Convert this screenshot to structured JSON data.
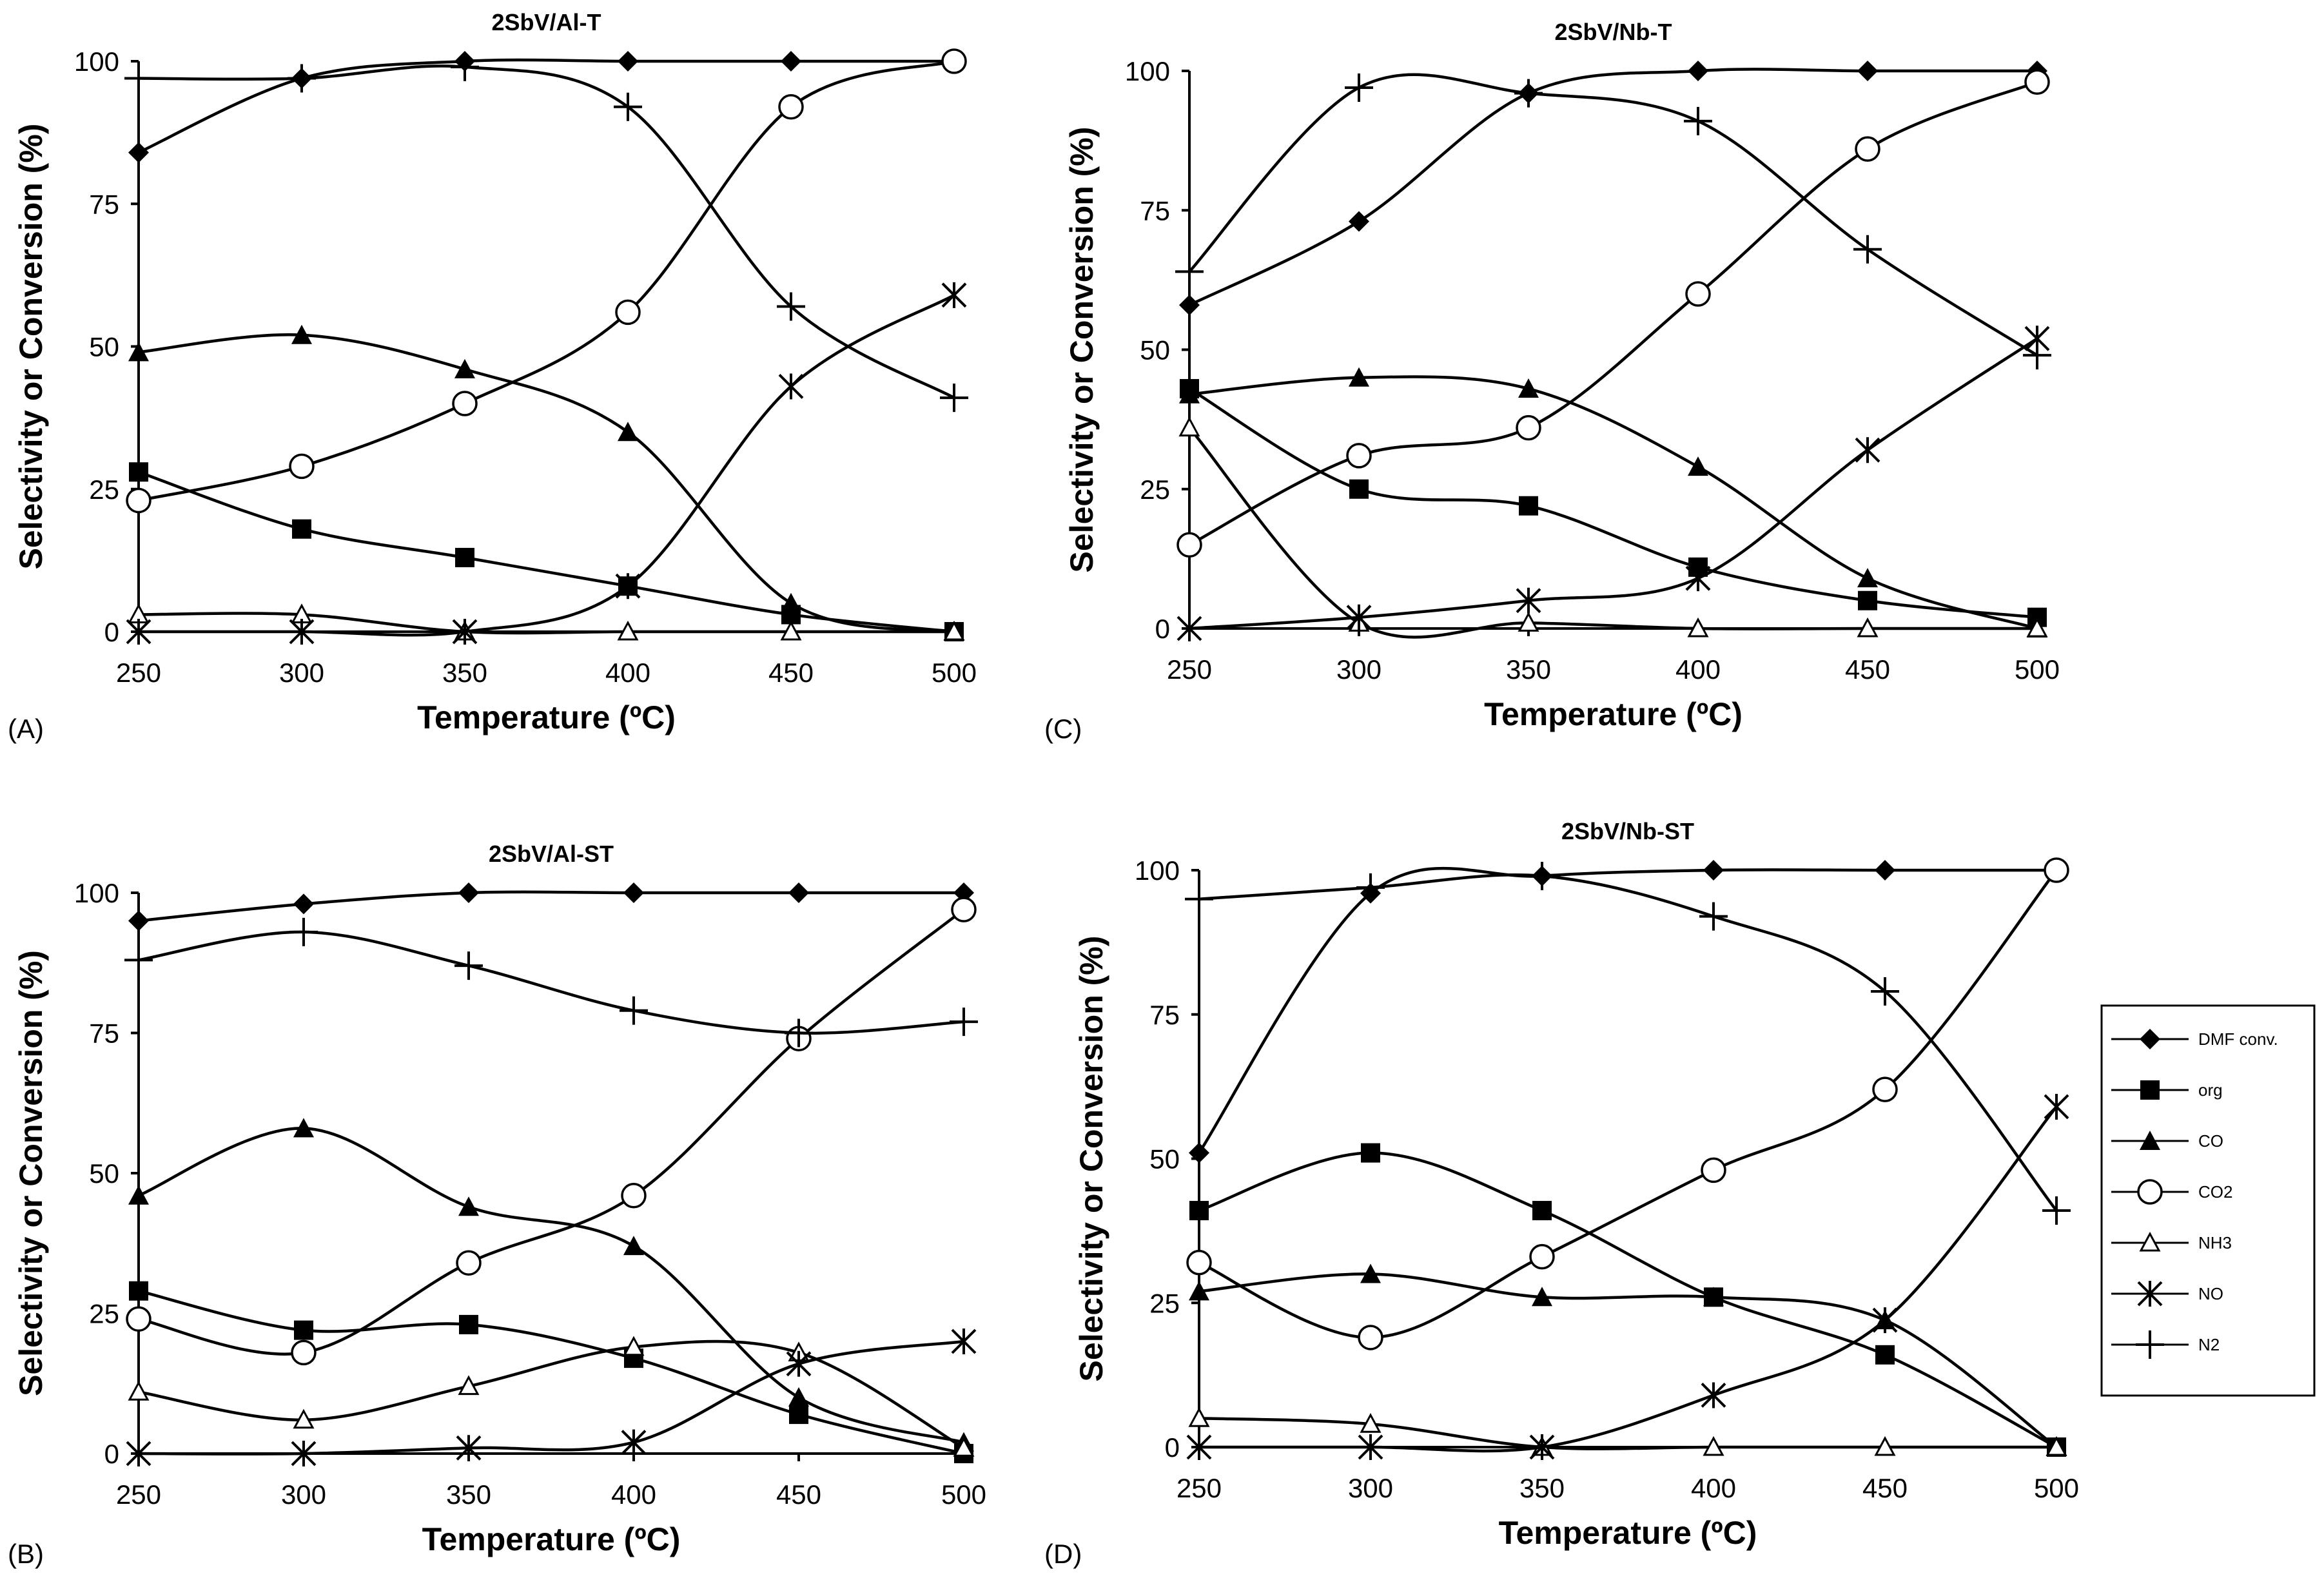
{
  "chart_data": [
    {
      "type": "line",
      "panel": "(A)",
      "title": "2SbV/Al-T",
      "xlabel": "Temperature (ºC)",
      "ylabel": "Selectivity or Conversion (%)",
      "x": [
        250,
        300,
        350,
        400,
        450,
        500
      ],
      "xticks": [
        "250",
        "300",
        "350",
        "400",
        "450",
        "500"
      ],
      "yticks": [
        "0",
        "25",
        "50",
        "75",
        "100"
      ],
      "ylim": [
        0,
        100
      ],
      "series": [
        {
          "name": "DMF conv.",
          "marker": "diamond",
          "values": [
            84,
            97,
            100,
            100,
            100,
            100
          ]
        },
        {
          "name": "org",
          "marker": "square",
          "values": [
            28,
            18,
            13,
            8,
            3,
            0
          ]
        },
        {
          "name": "CO",
          "marker": "triangle",
          "values": [
            49,
            52,
            46,
            35,
            5,
            0
          ]
        },
        {
          "name": "CO2",
          "marker": "circle",
          "values": [
            23,
            29,
            40,
            56,
            92,
            100
          ]
        },
        {
          "name": "NH3",
          "marker": "open-triangle",
          "values": [
            3,
            3,
            0,
            0,
            0,
            0
          ]
        },
        {
          "name": "NO",
          "marker": "star",
          "values": [
            0,
            0,
            0,
            8,
            43,
            59
          ]
        },
        {
          "name": "N2",
          "marker": "plus",
          "values": [
            97,
            97,
            99,
            92,
            57,
            41
          ]
        }
      ]
    },
    {
      "type": "line",
      "panel": "(B)",
      "title": "2SbV/Al-ST",
      "xlabel": "Temperature (ºC)",
      "ylabel": "Selectivity or Conversion (%)",
      "x": [
        250,
        300,
        350,
        400,
        450,
        500
      ],
      "xticks": [
        "250",
        "300",
        "350",
        "400",
        "450",
        "500"
      ],
      "yticks": [
        "0",
        "25",
        "50",
        "75",
        "100"
      ],
      "ylim": [
        0,
        100
      ],
      "series": [
        {
          "name": "DMF conv.",
          "marker": "diamond",
          "values": [
            95,
            98,
            100,
            100,
            100,
            100
          ]
        },
        {
          "name": "org",
          "marker": "square",
          "values": [
            29,
            22,
            23,
            17,
            7,
            0
          ]
        },
        {
          "name": "CO",
          "marker": "triangle",
          "values": [
            46,
            58,
            44,
            37,
            10,
            2
          ]
        },
        {
          "name": "CO2",
          "marker": "circle",
          "values": [
            24,
            18,
            34,
            46,
            74,
            97
          ]
        },
        {
          "name": "NH3",
          "marker": "open-triangle",
          "values": [
            11,
            6,
            12,
            19,
            18,
            1
          ]
        },
        {
          "name": "NO",
          "marker": "star",
          "values": [
            0,
            0,
            1,
            2,
            16,
            20
          ]
        },
        {
          "name": "N2",
          "marker": "plus",
          "values": [
            88,
            93,
            87,
            79,
            75,
            77
          ]
        }
      ]
    },
    {
      "type": "line",
      "panel": "(C)",
      "title": "2SbV/Nb-T",
      "xlabel": "Temperature (ºC)",
      "ylabel": "Selectivity or Conversion (%)",
      "x": [
        250,
        300,
        350,
        400,
        450,
        500
      ],
      "xticks": [
        "250",
        "300",
        "350",
        "400",
        "450",
        "500"
      ],
      "yticks": [
        "0",
        "25",
        "50",
        "75",
        "100"
      ],
      "ylim": [
        0,
        100
      ],
      "series": [
        {
          "name": "DMF conv.",
          "marker": "diamond",
          "values": [
            58,
            73,
            96,
            100,
            100,
            100
          ]
        },
        {
          "name": "org",
          "marker": "square",
          "values": [
            43,
            25,
            22,
            11,
            5,
            2
          ]
        },
        {
          "name": "CO",
          "marker": "triangle",
          "values": [
            42,
            45,
            43,
            29,
            9,
            0
          ]
        },
        {
          "name": "CO2",
          "marker": "circle",
          "values": [
            15,
            31,
            36,
            60,
            86,
            98
          ]
        },
        {
          "name": "NH3",
          "marker": "open-triangle",
          "values": [
            36,
            1,
            1,
            0,
            0,
            0
          ]
        },
        {
          "name": "NO",
          "marker": "star",
          "values": [
            0,
            2,
            5,
            9,
            32,
            52
          ]
        },
        {
          "name": "N2",
          "marker": "plus",
          "values": [
            64,
            97,
            96,
            91,
            68,
            49
          ]
        }
      ]
    },
    {
      "type": "line",
      "panel": "(D)",
      "title": "2SbV/Nb-ST",
      "xlabel": "Temperature (ºC)",
      "ylabel": "Selectivity or Conversion (%)",
      "x": [
        250,
        300,
        350,
        400,
        450,
        500
      ],
      "xticks": [
        "250",
        "300",
        "350",
        "400",
        "450",
        "500"
      ],
      "yticks": [
        "0",
        "25",
        "50",
        "75",
        "100"
      ],
      "ylim": [
        0,
        100
      ],
      "series": [
        {
          "name": "DMF conv.",
          "marker": "diamond",
          "values": [
            51,
            96,
            99,
            100,
            100,
            100
          ]
        },
        {
          "name": "org",
          "marker": "square",
          "values": [
            41,
            51,
            41,
            26,
            16,
            0
          ]
        },
        {
          "name": "CO",
          "marker": "triangle",
          "values": [
            27,
            30,
            26,
            26,
            22,
            0
          ]
        },
        {
          "name": "CO2",
          "marker": "circle",
          "values": [
            32,
            19,
            33,
            48,
            62,
            100
          ]
        },
        {
          "name": "NH3",
          "marker": "open-triangle",
          "values": [
            5,
            4,
            0,
            0,
            0,
            0
          ]
        },
        {
          "name": "NO",
          "marker": "star",
          "values": [
            0,
            0,
            0,
            9,
            22,
            59
          ]
        },
        {
          "name": "N2",
          "marker": "plus",
          "values": [
            95,
            97,
            99,
            92,
            79,
            41
          ]
        }
      ]
    }
  ],
  "legend": {
    "entries": [
      {
        "label": "DMF conv.",
        "marker": "diamond"
      },
      {
        "label": "org",
        "marker": "square"
      },
      {
        "label": "CO",
        "marker": "triangle"
      },
      {
        "label": "CO2",
        "marker": "circle"
      },
      {
        "label": "NH3",
        "marker": "open-triangle"
      },
      {
        "label": "NO",
        "marker": "star"
      },
      {
        "label": "N2",
        "marker": "plus"
      }
    ]
  }
}
